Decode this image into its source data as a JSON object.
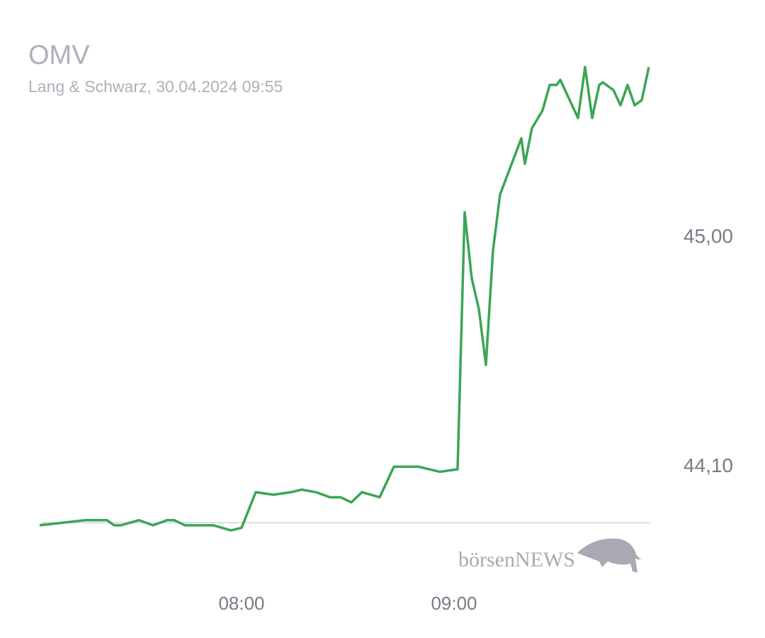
{
  "chart_data": {
    "type": "line",
    "title": "OMV",
    "subtitle": "Lang & Schwarz, 30.04.2024 09:55",
    "watermark": "börsenNEWS",
    "x": [
      "07:03",
      "07:16",
      "07:22",
      "07:24",
      "07:26",
      "07:31",
      "07:35",
      "07:39",
      "07:41",
      "07:44",
      "07:52",
      "07:57",
      "08:00",
      "08:04",
      "08:09",
      "08:14",
      "08:17",
      "08:21",
      "08:25",
      "08:28",
      "08:31",
      "08:34",
      "08:39",
      "08:43",
      "08:50",
      "08:56",
      "09:01",
      "09:03",
      "09:05",
      "09:07",
      "09:09",
      "09:11",
      "09:13",
      "09:16",
      "09:19",
      "09:20",
      "09:22",
      "09:25",
      "09:27",
      "09:29",
      "09:30",
      "09:33",
      "09:35",
      "09:37",
      "09:39",
      "09:41",
      "09:42",
      "09:45",
      "09:47",
      "09:49",
      "09:51",
      "09:53",
      "09:55"
    ],
    "values": [
      43.87,
      43.89,
      43.89,
      43.87,
      43.87,
      43.89,
      43.87,
      43.89,
      43.89,
      43.87,
      43.87,
      43.85,
      43.86,
      44.0,
      43.99,
      44.0,
      44.01,
      44.0,
      43.98,
      43.98,
      43.96,
      44.0,
      43.98,
      44.1,
      44.1,
      44.08,
      44.09,
      45.1,
      44.84,
      44.72,
      44.5,
      44.95,
      45.17,
      45.28,
      45.39,
      45.29,
      45.43,
      45.5,
      45.6,
      45.6,
      45.62,
      45.53,
      45.47,
      45.67,
      45.47,
      45.6,
      45.61,
      45.58,
      45.52,
      45.6,
      45.52,
      45.54,
      45.67
    ],
    "color": "#3aa655",
    "reference_line": 43.88,
    "reference_color": "#dcdcdc",
    "xlim": [
      "07:00",
      "10:00"
    ],
    "xticks": [
      "08:00",
      "09:00"
    ],
    "ylim": [
      43.7,
      45.8
    ],
    "yticks": [
      {
        "value": 44.1,
        "label": "44,10"
      },
      {
        "value": 45,
        "label": "45,00"
      }
    ]
  }
}
